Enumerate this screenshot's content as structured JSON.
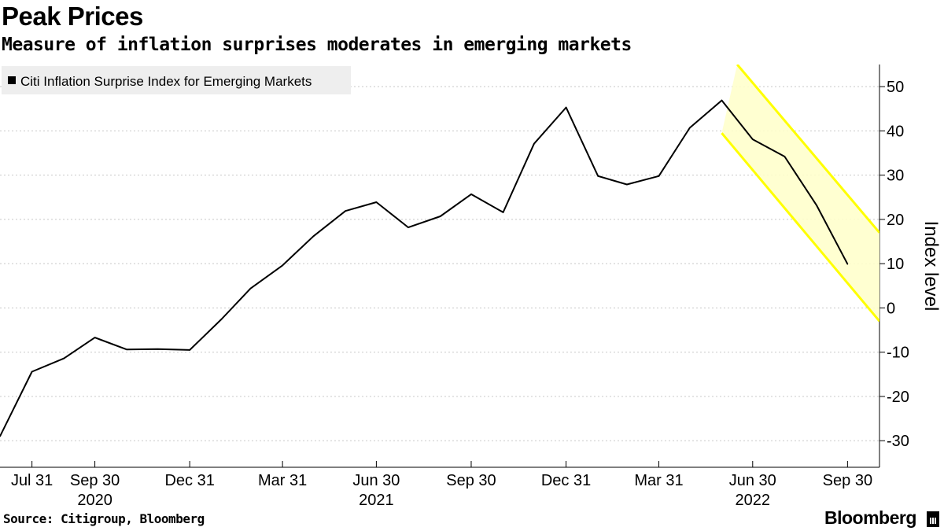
{
  "header": {
    "title": "Peak Prices",
    "subtitle": "Measure of inflation surprises moderates in emerging markets"
  },
  "footer": {
    "source": "Source: Citigroup, Bloomberg",
    "brand": "Bloomberg"
  },
  "colors": {
    "line": "#000000",
    "channel": "#ffff00",
    "channel_fill": "#ffffcc",
    "grid": "#c8c8c8",
    "legend_bg": "#eeeeee"
  },
  "chart_data": {
    "type": "line",
    "legend_placement": "top-left",
    "grid": "horizontal dashed",
    "ylabel": "Index level",
    "y_axis_side": "right",
    "ylim": [
      -36,
      55
    ],
    "yticks": [
      -30,
      -20,
      -10,
      0,
      10,
      20,
      30,
      40,
      50
    ],
    "x_start": "2020-06-30",
    "x_end": "2022-10-31",
    "xticks": [
      {
        "date": "2020-07-31",
        "label": "Jul 31",
        "year": ""
      },
      {
        "date": "2020-09-30",
        "label": "Sep 30",
        "year": "2020"
      },
      {
        "date": "2020-12-31",
        "label": "Dec 31",
        "year": ""
      },
      {
        "date": "2021-03-31",
        "label": "Mar 31",
        "year": ""
      },
      {
        "date": "2021-06-30",
        "label": "Jun 30",
        "year": "2021"
      },
      {
        "date": "2021-09-30",
        "label": "Sep 30",
        "year": ""
      },
      {
        "date": "2021-12-31",
        "label": "Dec 31",
        "year": ""
      },
      {
        "date": "2022-03-31",
        "label": "Mar 31",
        "year": ""
      },
      {
        "date": "2022-06-30",
        "label": "Jun 30",
        "year": "2022"
      },
      {
        "date": "2022-09-30",
        "label": "Sep 30",
        "year": ""
      }
    ],
    "series": [
      {
        "name": "Citi Inflation Surprise Index for Emerging Markets",
        "points": [
          [
            "2020-06-30",
            -29.0
          ],
          [
            "2020-07-31",
            -14.4
          ],
          [
            "2020-08-31",
            -11.4
          ],
          [
            "2020-09-30",
            -6.7
          ],
          [
            "2020-10-31",
            -9.4
          ],
          [
            "2020-11-30",
            -9.3
          ],
          [
            "2020-12-31",
            -9.5
          ],
          [
            "2021-01-31",
            -2.5
          ],
          [
            "2021-02-28",
            4.4
          ],
          [
            "2021-03-31",
            9.6
          ],
          [
            "2021-04-30",
            16.2
          ],
          [
            "2021-05-31",
            21.9
          ],
          [
            "2021-06-30",
            23.9
          ],
          [
            "2021-07-31",
            18.2
          ],
          [
            "2021-08-31",
            20.7
          ],
          [
            "2021-09-30",
            25.7
          ],
          [
            "2021-10-31",
            21.6
          ],
          [
            "2021-11-30",
            37.1
          ],
          [
            "2021-12-31",
            45.3
          ],
          [
            "2022-01-31",
            29.8
          ],
          [
            "2022-02-28",
            27.9
          ],
          [
            "2022-03-31",
            29.8
          ],
          [
            "2022-04-30",
            40.7
          ],
          [
            "2022-05-31",
            46.9
          ],
          [
            "2022-06-30",
            38.1
          ],
          [
            "2022-07-31",
            34.2
          ],
          [
            "2022-08-31",
            23.2
          ],
          [
            "2022-09-30",
            9.9
          ]
        ]
      }
    ],
    "channel": {
      "upper": [
        [
          "2022-06-15",
          55.0
        ],
        [
          "2022-10-31",
          17.0
        ]
      ],
      "lower": [
        [
          "2022-05-31",
          39.5
        ],
        [
          "2022-10-31",
          -3.0
        ]
      ]
    }
  }
}
